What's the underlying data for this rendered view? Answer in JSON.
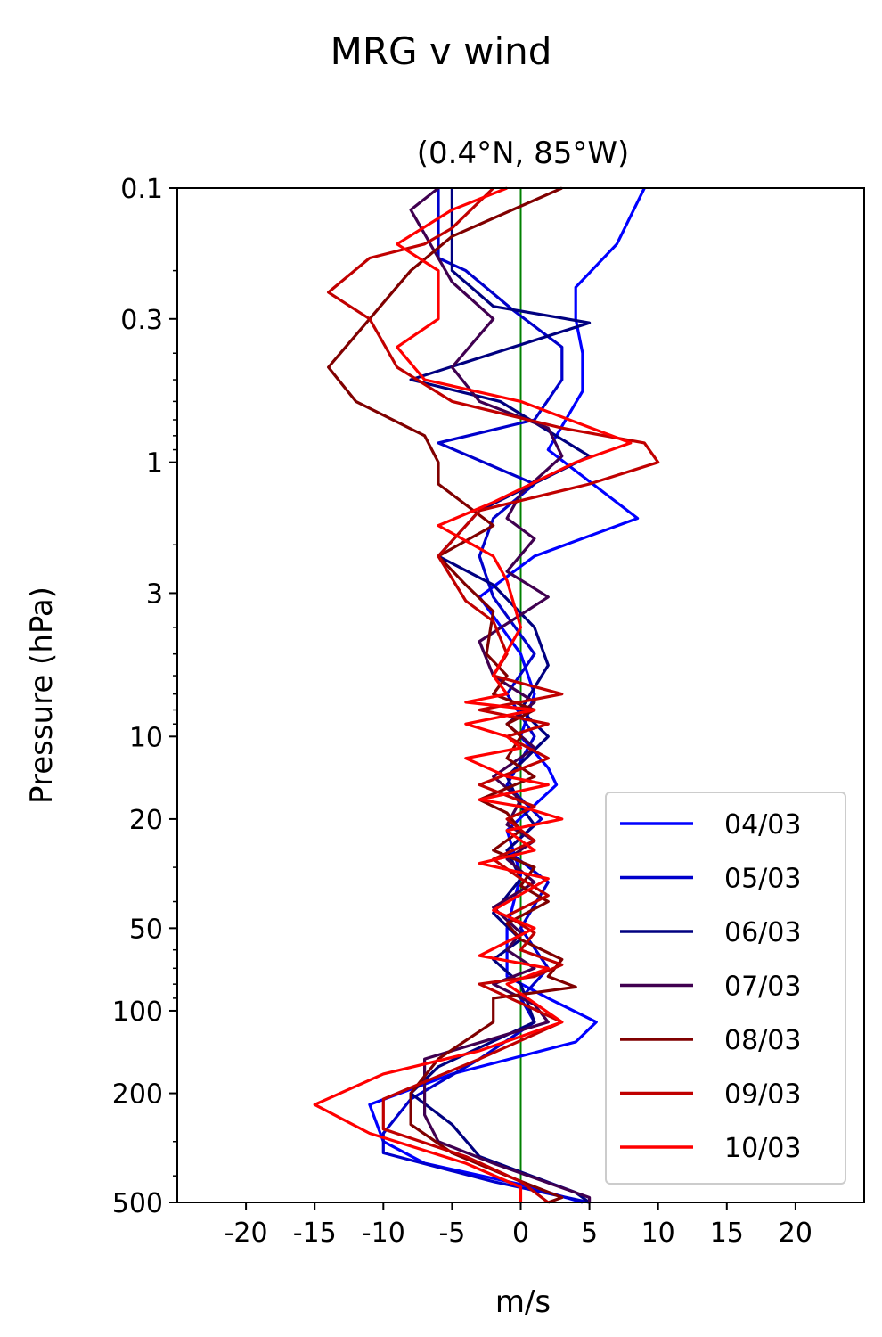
{
  "chart_data": {
    "type": "line",
    "suptitle": "MRG v wind",
    "title": "(0.4°N, 85°W)",
    "xlabel": "m/s",
    "ylabel": "Pressure (hPa)",
    "xlim": [
      -25,
      25
    ],
    "ylim": [
      500,
      0.1
    ],
    "yscale": "log",
    "xticks": [
      -20,
      -15,
      -10,
      -5,
      0,
      5,
      10,
      15,
      20
    ],
    "xtick_labels": [
      "-20",
      "-15",
      "-10",
      "-5",
      "0",
      "5",
      "10",
      "15",
      "20"
    ],
    "yticks": [
      0.1,
      0.3,
      1,
      3,
      10,
      20,
      50,
      100,
      200,
      500
    ],
    "ytick_labels": [
      "0.1",
      "0.3",
      "1",
      "3",
      "10",
      "20",
      "50",
      "100",
      "200",
      "500"
    ],
    "reference_line": {
      "x": 0,
      "color": "#008000"
    },
    "legend_position": "lower-right",
    "series": [
      {
        "name": "04/03",
        "color": "#0000ff",
        "points": [
          [
            9,
            0.1
          ],
          [
            7,
            0.16
          ],
          [
            4,
            0.23
          ],
          [
            4,
            0.3
          ],
          [
            4.5,
            0.4
          ],
          [
            4.5,
            0.55
          ],
          [
            2,
            0.9
          ],
          [
            8.5,
            1.6
          ],
          [
            1,
            2.2
          ],
          [
            -3,
            3.1
          ],
          [
            0,
            5
          ],
          [
            1,
            7
          ],
          [
            0,
            10
          ],
          [
            2,
            13
          ],
          [
            2.6,
            15
          ],
          [
            -1,
            22
          ],
          [
            0,
            32
          ],
          [
            -1,
            50
          ],
          [
            -1,
            75
          ],
          [
            2,
            90
          ],
          [
            5.5,
            110
          ],
          [
            4,
            130
          ],
          [
            -5,
            170
          ],
          [
            -11,
            220
          ],
          [
            -10,
            300
          ],
          [
            -7,
            360
          ],
          [
            0,
            430
          ],
          [
            4.5,
            500
          ]
        ]
      },
      {
        "name": "05/03",
        "color": "#0000cc",
        "points": [
          [
            -6,
            0.1
          ],
          [
            -6,
            0.18
          ],
          [
            -4,
            0.2
          ],
          [
            -0.5,
            0.28
          ],
          [
            3,
            0.38
          ],
          [
            3,
            0.5
          ],
          [
            1,
            0.7
          ],
          [
            -6,
            0.85
          ],
          [
            1,
            1.2
          ],
          [
            -2,
            1.6
          ],
          [
            -3,
            2.2
          ],
          [
            -2,
            3.1
          ],
          [
            1,
            5
          ],
          [
            -1,
            7
          ],
          [
            1,
            10
          ],
          [
            -1,
            15
          ],
          [
            1.5,
            20
          ],
          [
            -1,
            26
          ],
          [
            2,
            34
          ],
          [
            0,
            50
          ],
          [
            2,
            70
          ],
          [
            0,
            90
          ],
          [
            1,
            110
          ],
          [
            -3,
            150
          ],
          [
            -8,
            210
          ],
          [
            -10,
            280
          ],
          [
            -10,
            330
          ],
          [
            -2,
            420
          ],
          [
            5,
            500
          ]
        ]
      },
      {
        "name": "06/03",
        "color": "#000080",
        "points": [
          [
            -5,
            0.1
          ],
          [
            -5,
            0.14
          ],
          [
            -5,
            0.2
          ],
          [
            -2,
            0.27
          ],
          [
            5,
            0.31
          ],
          [
            -8,
            0.5
          ],
          [
            -1.5,
            0.6
          ],
          [
            5,
            0.95
          ],
          [
            -3,
            1.5
          ],
          [
            -6,
            2.2
          ],
          [
            -2,
            2.8
          ],
          [
            1,
            4
          ],
          [
            2,
            5.5
          ],
          [
            0,
            8
          ],
          [
            2,
            10
          ],
          [
            -1,
            14
          ],
          [
            0,
            18
          ],
          [
            1,
            21
          ],
          [
            -1,
            26
          ],
          [
            0,
            33
          ],
          [
            -2,
            44
          ],
          [
            0,
            55
          ],
          [
            -2,
            65
          ],
          [
            0,
            80
          ],
          [
            1,
            110
          ],
          [
            -6,
            160
          ],
          [
            -8,
            200
          ],
          [
            -5,
            260
          ],
          [
            -3,
            340
          ],
          [
            4,
            460
          ],
          [
            5,
            500
          ]
        ]
      },
      {
        "name": "07/03",
        "color": "#400050",
        "points": [
          [
            -6,
            0.1
          ],
          [
            -8,
            0.12
          ],
          [
            -6,
            0.18
          ],
          [
            -5,
            0.22
          ],
          [
            -2,
            0.3
          ],
          [
            -5,
            0.45
          ],
          [
            -3,
            0.6
          ],
          [
            2,
            0.75
          ],
          [
            3,
            0.95
          ],
          [
            0,
            1.3
          ],
          [
            -1,
            1.6
          ],
          [
            1,
            1.9
          ],
          [
            -1,
            2.5
          ],
          [
            2,
            3.1
          ],
          [
            -3,
            4.5
          ],
          [
            -2,
            6
          ],
          [
            1,
            7.5
          ],
          [
            -1,
            9
          ],
          [
            1,
            11
          ],
          [
            -2,
            14
          ],
          [
            0,
            17
          ],
          [
            -1,
            21
          ],
          [
            1,
            24
          ],
          [
            -1,
            28
          ],
          [
            1,
            34
          ],
          [
            -2,
            42
          ],
          [
            0,
            52
          ],
          [
            -1,
            60
          ],
          [
            1,
            70
          ],
          [
            -2,
            80
          ],
          [
            1,
            95
          ],
          [
            2,
            110
          ],
          [
            -7,
            150
          ],
          [
            -7,
            190
          ],
          [
            -7,
            240
          ],
          [
            -6,
            300
          ],
          [
            -2,
            360
          ],
          [
            5,
            480
          ],
          [
            5,
            500
          ]
        ]
      },
      {
        "name": "08/03",
        "color": "#800000",
        "points": [
          [
            3,
            0.1
          ],
          [
            -5,
            0.15
          ],
          [
            -8,
            0.2
          ],
          [
            -11,
            0.3
          ],
          [
            -14,
            0.45
          ],
          [
            -12,
            0.6
          ],
          [
            -7,
            0.8
          ],
          [
            -6,
            1.0
          ],
          [
            -6,
            1.2
          ],
          [
            -2,
            1.7
          ],
          [
            -6,
            2.2
          ],
          [
            -4,
            2.8
          ],
          [
            -2,
            3.5
          ],
          [
            -2.5,
            5
          ],
          [
            -1,
            6
          ],
          [
            -2,
            7
          ],
          [
            1,
            8
          ],
          [
            -1,
            9
          ],
          [
            0,
            10
          ],
          [
            -1,
            12
          ],
          [
            1,
            14
          ],
          [
            -3,
            17
          ],
          [
            -1,
            19
          ],
          [
            0,
            22
          ],
          [
            -2,
            26
          ],
          [
            1,
            30
          ],
          [
            0,
            35
          ],
          [
            2,
            40
          ],
          [
            -1,
            48
          ],
          [
            0,
            55
          ],
          [
            3,
            65
          ],
          [
            2,
            75
          ],
          [
            4,
            82
          ],
          [
            -2,
            90
          ],
          [
            -2,
            110
          ],
          [
            -6,
            150
          ],
          [
            -8,
            200
          ],
          [
            -8,
            260
          ],
          [
            -5,
            330
          ],
          [
            -1,
            400
          ],
          [
            3,
            480
          ],
          [
            2,
            500
          ]
        ]
      },
      {
        "name": "09/03",
        "color": "#c00000",
        "points": [
          [
            -2,
            0.1
          ],
          [
            -5,
            0.14
          ],
          [
            -7,
            0.16
          ],
          [
            -11,
            0.18
          ],
          [
            -14,
            0.24
          ],
          [
            -11,
            0.3
          ],
          [
            -9,
            0.45
          ],
          [
            -5,
            0.6
          ],
          [
            3,
            0.75
          ],
          [
            9,
            0.85
          ],
          [
            10,
            1.0
          ],
          [
            5,
            1.2
          ],
          [
            -3,
            1.5
          ],
          [
            -6,
            2.2
          ],
          [
            -4,
            3.2
          ],
          [
            -2,
            3.8
          ],
          [
            -1,
            5
          ],
          [
            -2,
            6
          ],
          [
            3,
            7
          ],
          [
            -3,
            8
          ],
          [
            2,
            9
          ],
          [
            -1,
            10
          ],
          [
            2,
            12
          ],
          [
            -3,
            15
          ],
          [
            1,
            18
          ],
          [
            -1,
            20
          ],
          [
            1,
            24
          ],
          [
            -2,
            28
          ],
          [
            0,
            33
          ],
          [
            2,
            38
          ],
          [
            -1,
            45
          ],
          [
            1,
            52
          ],
          [
            0,
            60
          ],
          [
            3,
            68
          ],
          [
            1,
            75
          ],
          [
            -3,
            80
          ],
          [
            3,
            110
          ],
          [
            -3,
            150
          ],
          [
            -10,
            210
          ],
          [
            -10,
            270
          ],
          [
            -4,
            340
          ],
          [
            0,
            420
          ],
          [
            2,
            500
          ]
        ]
      },
      {
        "name": "10/03",
        "color": "#ff0000",
        "points": [
          [
            -1,
            0.1
          ],
          [
            -5,
            0.12
          ],
          [
            -9,
            0.16
          ],
          [
            -6,
            0.2
          ],
          [
            -6,
            0.3
          ],
          [
            -9,
            0.38
          ],
          [
            -7,
            0.5
          ],
          [
            0,
            0.6
          ],
          [
            8,
            0.85
          ],
          [
            4,
            1.0
          ],
          [
            -2,
            1.4
          ],
          [
            -6,
            1.7
          ],
          [
            -2,
            2.2
          ],
          [
            -1,
            2.7
          ],
          [
            0,
            4
          ],
          [
            -2,
            6
          ],
          [
            -1,
            7
          ],
          [
            -4,
            7.5
          ],
          [
            1,
            8
          ],
          [
            -4,
            9
          ],
          [
            -1,
            10
          ],
          [
            0,
            11
          ],
          [
            -4,
            12
          ],
          [
            -1,
            14
          ],
          [
            2,
            15
          ],
          [
            -3,
            17
          ],
          [
            0,
            18
          ],
          [
            3,
            20
          ],
          [
            -1,
            22
          ],
          [
            1,
            26
          ],
          [
            -3,
            29
          ],
          [
            2,
            33
          ],
          [
            -2,
            43
          ],
          [
            1,
            50
          ],
          [
            -3,
            63
          ],
          [
            2,
            70
          ],
          [
            -1,
            80
          ],
          [
            3,
            110
          ],
          [
            -3,
            140
          ],
          [
            -10,
            170
          ],
          [
            -15,
            220
          ],
          [
            -11,
            280
          ],
          [
            -4,
            360
          ],
          [
            0,
            440
          ],
          [
            0,
            500
          ]
        ]
      }
    ]
  }
}
